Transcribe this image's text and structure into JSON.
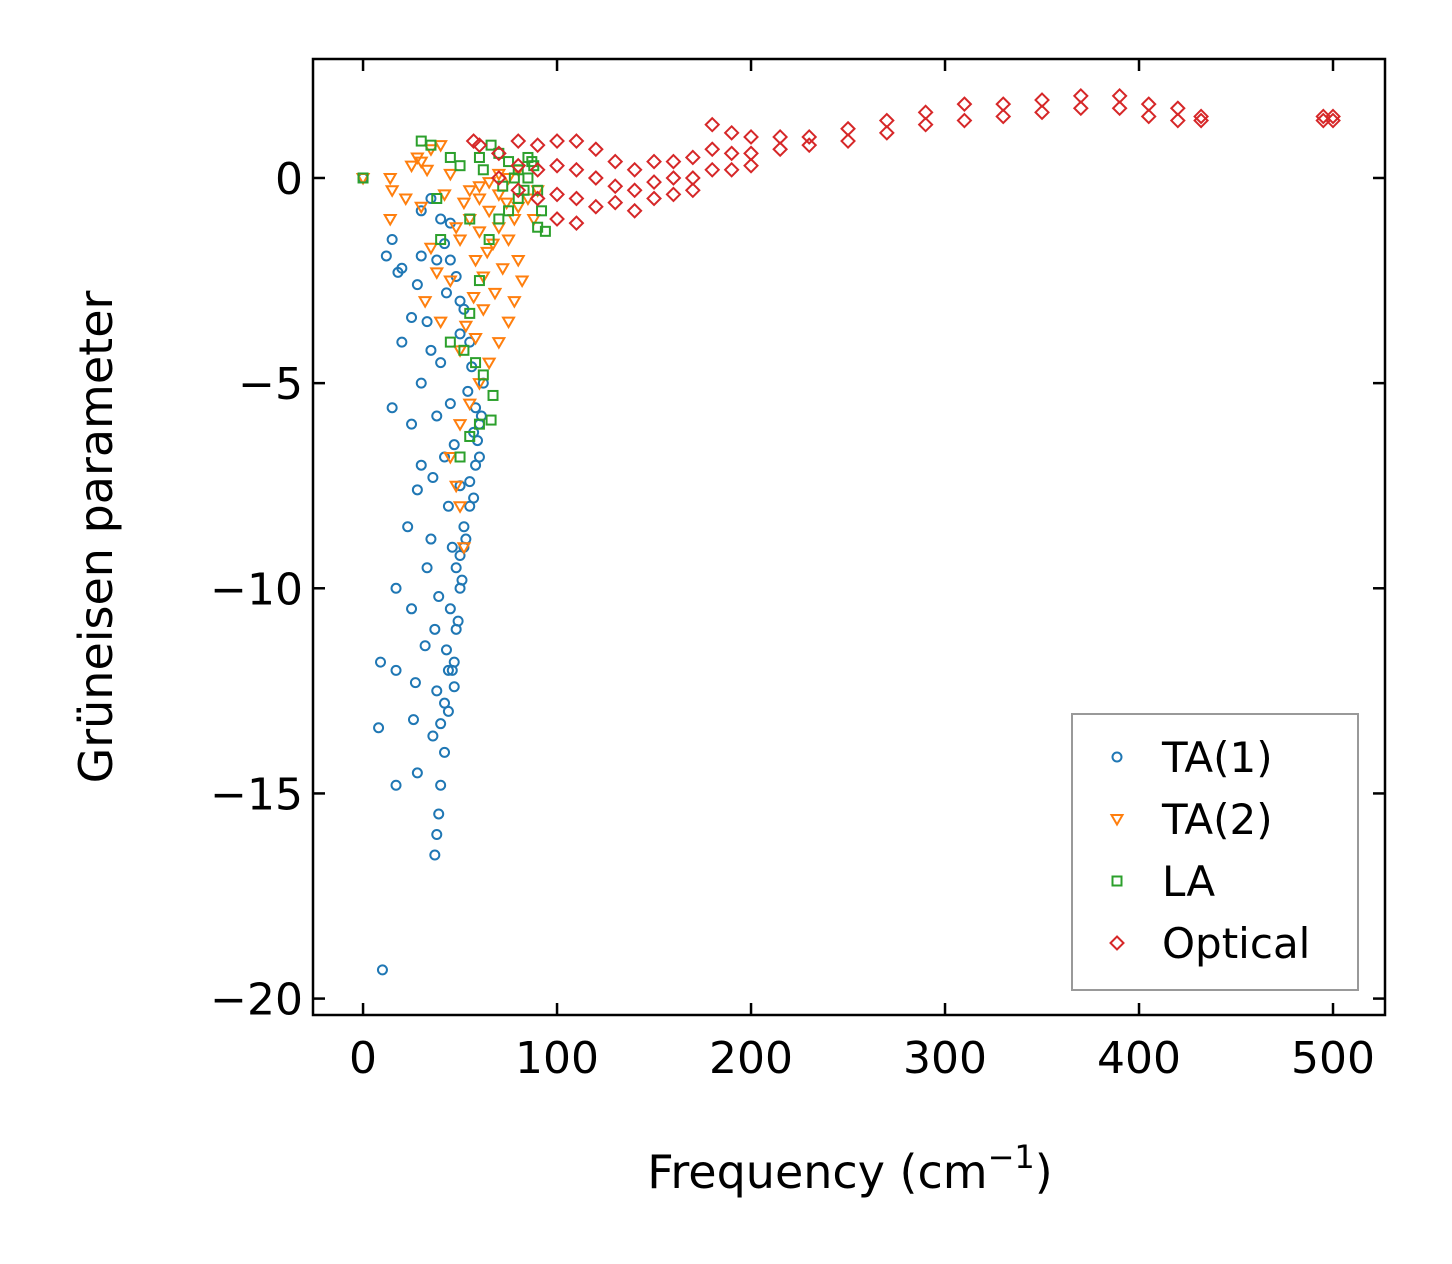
{
  "chart_data": {
    "type": "scatter",
    "title": "",
    "xlabel": "Frequency (cm⁻¹)",
    "xlabel_parts": {
      "main": "Frequency (cm",
      "sup": "−1",
      "end": ")"
    },
    "ylabel": "Grüneisen parameter",
    "xlim": [
      -25.8,
      526.8
    ],
    "ylim": [
      -20.4,
      2.9
    ],
    "xticks": [
      0,
      100,
      200,
      300,
      400,
      500
    ],
    "xtick_labels": [
      "0",
      "100",
      "200",
      "300",
      "400",
      "500"
    ],
    "yticks": [
      0,
      -5,
      -10,
      -15,
      -20
    ],
    "ytick_labels": [
      "0",
      "−5",
      "−10",
      "−15",
      "−20"
    ],
    "grid": false,
    "legend_position": "lower-right",
    "series": [
      {
        "name": "TA(1)",
        "marker": "circle",
        "color": "#1f77b4",
        "points": [
          [
            0,
            0
          ],
          [
            10,
            -19.3
          ],
          [
            9,
            -11.8
          ],
          [
            8,
            -13.4
          ],
          [
            17,
            -14.8
          ],
          [
            17,
            -12.0
          ],
          [
            17,
            -10.0
          ],
          [
            12,
            -1.9
          ],
          [
            15,
            -1.5
          ],
          [
            18,
            -2.3
          ],
          [
            25,
            -10.5
          ],
          [
            23,
            -8.5
          ],
          [
            27,
            -12.3
          ],
          [
            26,
            -13.2
          ],
          [
            28,
            -14.5
          ],
          [
            37,
            -16.5
          ],
          [
            38,
            -16.0
          ],
          [
            39,
            -15.5
          ],
          [
            40,
            -14.8
          ],
          [
            42,
            -14.0
          ],
          [
            44,
            -13.0
          ],
          [
            46,
            -12.0
          ],
          [
            48,
            -11
          ],
          [
            50,
            -10
          ],
          [
            52,
            -9
          ],
          [
            55,
            -8
          ],
          [
            58,
            -7
          ],
          [
            60,
            -6
          ],
          [
            62,
            -5
          ],
          [
            55,
            -4
          ],
          [
            50,
            -3
          ],
          [
            45,
            -2
          ],
          [
            40,
            -1
          ],
          [
            35,
            -0.5
          ],
          [
            30,
            -0.8
          ],
          [
            20,
            -4
          ],
          [
            15,
            -5.6
          ],
          [
            25,
            -6
          ],
          [
            30,
            -7
          ],
          [
            28,
            -7.6
          ],
          [
            35,
            -8.8
          ],
          [
            33,
            -9.5
          ],
          [
            32,
            -11.4
          ],
          [
            38,
            -12.5
          ],
          [
            36,
            -13.6
          ],
          [
            33,
            -3.5
          ],
          [
            28,
            -2.6
          ],
          [
            40,
            -4.5
          ],
          [
            45,
            -5.5
          ],
          [
            47,
            -6.5
          ],
          [
            50,
            -7.5
          ],
          [
            52,
            -8.5
          ],
          [
            48,
            -9.5
          ],
          [
            45,
            -10.5
          ],
          [
            43,
            -11.5
          ],
          [
            42,
            -12.8
          ],
          [
            40,
            -13.3
          ],
          [
            20,
            -2.2
          ],
          [
            25,
            -3.4
          ],
          [
            35,
            -4.2
          ],
          [
            30,
            -5.0
          ],
          [
            38,
            -5.8
          ],
          [
            42,
            -6.8
          ],
          [
            36,
            -7.3
          ],
          [
            44,
            -8.0
          ],
          [
            46,
            -9.0
          ],
          [
            39,
            -10.2
          ],
          [
            37,
            -11.0
          ],
          [
            50,
            -3.8
          ],
          [
            54,
            -5.2
          ],
          [
            57,
            -6.2
          ],
          [
            60,
            -6.8
          ],
          [
            43,
            -2.8
          ],
          [
            38,
            -2.0
          ],
          [
            30,
            -1.9
          ],
          [
            45,
            -1.1
          ],
          [
            58,
            -5.6
          ],
          [
            53,
            -8.8
          ],
          [
            51,
            -9.8
          ],
          [
            49,
            -10.8
          ],
          [
            47,
            -11.8
          ],
          [
            55,
            -7.4
          ],
          [
            57,
            -7.8
          ],
          [
            59,
            -6.4
          ],
          [
            61,
            -5.8
          ],
          [
            56,
            -4.6
          ],
          [
            52,
            -3.2
          ],
          [
            48,
            -2.4
          ],
          [
            42,
            -1.6
          ],
          [
            47,
            -12.4
          ],
          [
            44,
            -12.0
          ],
          [
            50,
            -9.2
          ]
        ]
      },
      {
        "name": "TA(2)",
        "marker": "triangle-down",
        "color": "#ff7f0e",
        "points": [
          [
            0,
            0
          ],
          [
            14,
            0
          ],
          [
            15,
            -0.3
          ],
          [
            14,
            -1.0
          ],
          [
            22,
            -0.5
          ],
          [
            25,
            0.3
          ],
          [
            28,
            0.5
          ],
          [
            35,
            0.7
          ],
          [
            40,
            0.8
          ],
          [
            30,
            -0.7
          ],
          [
            35,
            -1.7
          ],
          [
            38,
            -2.3
          ],
          [
            32,
            -3.0
          ],
          [
            40,
            -3.5
          ],
          [
            45,
            -2.5
          ],
          [
            50,
            -1.5
          ],
          [
            55,
            -1.0
          ],
          [
            60,
            -0.5
          ],
          [
            65,
            -0.8
          ],
          [
            70,
            -1.2
          ],
          [
            75,
            -1.5
          ],
          [
            80,
            -2.0
          ],
          [
            82,
            -2.5
          ],
          [
            78,
            -3.0
          ],
          [
            75,
            -3.5
          ],
          [
            70,
            -4.0
          ],
          [
            65,
            -4.5
          ],
          [
            60,
            -5.0
          ],
          [
            55,
            -5.5
          ],
          [
            50,
            -6.0
          ],
          [
            45,
            -6.8
          ],
          [
            48,
            -7.5
          ],
          [
            50,
            -8.0
          ],
          [
            52,
            -9.0
          ],
          [
            60,
            -0.2
          ],
          [
            70,
            0.1
          ],
          [
            80,
            0.2
          ],
          [
            85,
            -0.5
          ],
          [
            88,
            -1.0
          ],
          [
            72,
            -2.2
          ],
          [
            68,
            -2.8
          ],
          [
            62,
            -3.2
          ],
          [
            58,
            -2.0
          ],
          [
            52,
            -0.6
          ],
          [
            45,
            0.1
          ],
          [
            42,
            -0.4
          ],
          [
            90,
            -0.3
          ],
          [
            30,
            0.4
          ],
          [
            33,
            0.2
          ],
          [
            48,
            -1.2
          ],
          [
            64,
            -1.8
          ],
          [
            74,
            -0.6
          ],
          [
            78,
            -1.0
          ],
          [
            55,
            -0.3
          ],
          [
            60,
            -1.3
          ],
          [
            65,
            -0.1
          ],
          [
            70,
            -0.4
          ],
          [
            75,
            0.0
          ],
          [
            80,
            -0.7
          ],
          [
            67,
            -1.6
          ],
          [
            62,
            -2.4
          ],
          [
            57,
            -2.9
          ],
          [
            53,
            -3.6
          ],
          [
            50,
            -4.2
          ],
          [
            58,
            -3.9
          ]
        ]
      },
      {
        "name": "LA",
        "marker": "square",
        "color": "#2ca02c",
        "points": [
          [
            0,
            0
          ],
          [
            30,
            0.9
          ],
          [
            35,
            0.8
          ],
          [
            45,
            0.5
          ],
          [
            50,
            0.3
          ],
          [
            60,
            0.5
          ],
          [
            66,
            0.8
          ],
          [
            70,
            0.6
          ],
          [
            75,
            0.4
          ],
          [
            80,
            0.2
          ],
          [
            85,
            0.5
          ],
          [
            88,
            0.3
          ],
          [
            90,
            -0.3
          ],
          [
            92,
            -0.8
          ],
          [
            94,
            -1.3
          ],
          [
            90,
            -1.2
          ],
          [
            85,
            0.0
          ],
          [
            80,
            -0.5
          ],
          [
            75,
            -0.8
          ],
          [
            70,
            -1.0
          ],
          [
            65,
            -1.5
          ],
          [
            60,
            -2.5
          ],
          [
            55,
            -3.3
          ],
          [
            52,
            -4.2
          ],
          [
            58,
            -4.5
          ],
          [
            62,
            -4.8
          ],
          [
            67,
            -5.3
          ],
          [
            66,
            -5.9
          ],
          [
            60,
            -6.0
          ],
          [
            55,
            -6.3
          ],
          [
            50,
            -6.8
          ],
          [
            45,
            -4.0
          ],
          [
            40,
            -1.5
          ],
          [
            38,
            -0.5
          ],
          [
            55,
            -1.0
          ],
          [
            62,
            0.2
          ],
          [
            72,
            -0.2
          ],
          [
            78,
            0.0
          ],
          [
            83,
            -0.3
          ],
          [
            87,
            0.4
          ]
        ]
      },
      {
        "name": "Optical",
        "marker": "diamond",
        "color": "#d62728",
        "points": [
          [
            57,
            0.9
          ],
          [
            60,
            0.8
          ],
          [
            70,
            0.6
          ],
          [
            70,
            0.0
          ],
          [
            80,
            0.9
          ],
          [
            80,
            0.3
          ],
          [
            80,
            -0.3
          ],
          [
            90,
            0.8
          ],
          [
            90,
            0.2
          ],
          [
            90,
            -0.5
          ],
          [
            100,
            0.9
          ],
          [
            100,
            0.3
          ],
          [
            100,
            -0.4
          ],
          [
            100,
            -1.0
          ],
          [
            110,
            0.9
          ],
          [
            110,
            0.2
          ],
          [
            110,
            -0.5
          ],
          [
            110,
            -1.1
          ],
          [
            120,
            0.7
          ],
          [
            120,
            0.0
          ],
          [
            120,
            -0.7
          ],
          [
            130,
            0.4
          ],
          [
            130,
            -0.2
          ],
          [
            130,
            -0.6
          ],
          [
            140,
            0.2
          ],
          [
            140,
            -0.3
          ],
          [
            140,
            -0.8
          ],
          [
            150,
            0.4
          ],
          [
            150,
            -0.1
          ],
          [
            150,
            -0.5
          ],
          [
            160,
            0.4
          ],
          [
            160,
            0.0
          ],
          [
            160,
            -0.4
          ],
          [
            170,
            0.5
          ],
          [
            170,
            0.0
          ],
          [
            170,
            -0.3
          ],
          [
            180,
            1.3
          ],
          [
            180,
            0.7
          ],
          [
            180,
            0.2
          ],
          [
            190,
            1.1
          ],
          [
            190,
            0.6
          ],
          [
            190,
            0.2
          ],
          [
            200,
            1.0
          ],
          [
            200,
            0.6
          ],
          [
            200,
            0.3
          ],
          [
            215,
            1.0
          ],
          [
            215,
            0.7
          ],
          [
            230,
            1.0
          ],
          [
            230,
            0.8
          ],
          [
            250,
            1.2
          ],
          [
            250,
            0.9
          ],
          [
            270,
            1.4
          ],
          [
            270,
            1.1
          ],
          [
            290,
            1.6
          ],
          [
            290,
            1.3
          ],
          [
            310,
            1.8
          ],
          [
            310,
            1.4
          ],
          [
            330,
            1.8
          ],
          [
            330,
            1.5
          ],
          [
            350,
            1.9
          ],
          [
            350,
            1.6
          ],
          [
            370,
            2.0
          ],
          [
            370,
            1.7
          ],
          [
            390,
            2.0
          ],
          [
            390,
            1.7
          ],
          [
            405,
            1.8
          ],
          [
            405,
            1.5
          ],
          [
            420,
            1.7
          ],
          [
            420,
            1.4
          ],
          [
            432,
            1.5
          ],
          [
            432,
            1.4
          ],
          [
            495,
            1.5
          ],
          [
            495,
            1.4
          ],
          [
            500,
            1.5
          ],
          [
            500,
            1.4
          ]
        ]
      }
    ]
  }
}
